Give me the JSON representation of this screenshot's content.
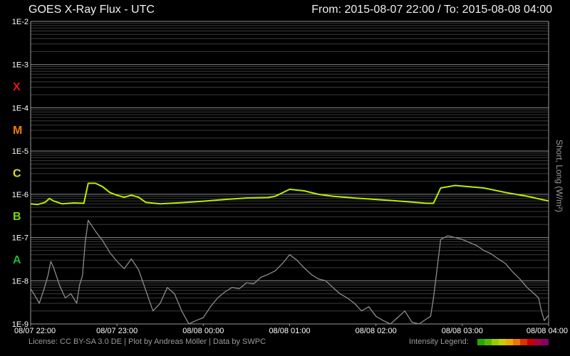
{
  "header": {
    "title": "GOES X-Ray Flux - UTC",
    "range": "From: 2015-08-07 22:00  /  To: 2015-08-08 04:00"
  },
  "footer": {
    "credits": "License: CC BY-SA 3.0 DE | Plot by Andreas Möller | Data by SWPC",
    "legend_label": "Intensity Legend:",
    "legend_colors": [
      "#22aa00",
      "#55bb00",
      "#99cc00",
      "#cccc00",
      "#eeaa00",
      "#ee7700",
      "#dd3300",
      "#cc0000",
      "#aa0044",
      "#880066"
    ]
  },
  "chart_data": {
    "type": "line",
    "title": "GOES X-Ray Flux - UTC",
    "ylabel": "Short, Long (W/m²)",
    "yscale": "log",
    "ylim": [
      1e-09,
      0.01
    ],
    "xlim": [
      "2015-08-07 22:00",
      "2015-08-08 04:00"
    ],
    "y_ticks": [
      "1E-9",
      "1E-8",
      "1E-7",
      "1E-6",
      "1E-5",
      "1E-4",
      "1E-3",
      "1E-2"
    ],
    "x_ticks": [
      "08/07 22:00",
      "08/07 23:00",
      "08/08 00:00",
      "08/08 01:00",
      "08/08 02:00",
      "08/08 03:00",
      "08/08 04:00"
    ],
    "flare_classes": [
      {
        "label": "X",
        "color": "#e01818"
      },
      {
        "label": "M",
        "color": "#f07a10"
      },
      {
        "label": "C",
        "color": "#d8e020"
      },
      {
        "label": "B",
        "color": "#7ed320"
      },
      {
        "label": "A",
        "color": "#20b830"
      }
    ],
    "grid": true,
    "series": [
      {
        "name": "Long",
        "color": "#b8f000",
        "x": [
          "2015-08-07 22:00",
          "2015-08-07 22:05",
          "2015-08-07 22:10",
          "2015-08-07 22:13",
          "2015-08-07 22:16",
          "2015-08-07 22:22",
          "2015-08-07 22:30",
          "2015-08-07 22:37",
          "2015-08-07 22:40",
          "2015-08-07 22:45",
          "2015-08-07 22:50",
          "2015-08-07 22:55",
          "2015-08-07 23:00",
          "2015-08-07 23:05",
          "2015-08-07 23:10",
          "2015-08-07 23:15",
          "2015-08-07 23:20",
          "2015-08-07 23:30",
          "2015-08-07 23:45",
          "2015-08-08 00:00",
          "2015-08-08 00:15",
          "2015-08-08 00:30",
          "2015-08-08 00:45",
          "2015-08-08 00:50",
          "2015-08-08 01:00",
          "2015-08-08 01:10",
          "2015-08-08 01:20",
          "2015-08-08 01:30",
          "2015-08-08 01:45",
          "2015-08-08 02:00",
          "2015-08-08 02:15",
          "2015-08-08 02:30",
          "2015-08-08 02:35",
          "2015-08-08 02:40",
          "2015-08-08 02:45",
          "2015-08-08 02:55",
          "2015-08-08 03:05",
          "2015-08-08 03:15",
          "2015-08-08 03:30",
          "2015-08-08 03:45",
          "2015-08-08 04:00"
        ],
        "y": [
          6e-07,
          5.8e-07,
          6.5e-07,
          8e-07,
          7e-07,
          6e-07,
          6.3e-07,
          6.2e-07,
          1.8e-06,
          1.8e-06,
          1.5e-06,
          1.1e-06,
          9.5e-07,
          8.5e-07,
          9.5e-07,
          8.5e-07,
          6.5e-07,
          6e-07,
          6.4e-07,
          6.9e-07,
          7.6e-07,
          8.2e-07,
          8.4e-07,
          9e-07,
          1.3e-06,
          1.2e-06,
          1e-06,
          9e-07,
          8.2e-07,
          7.6e-07,
          7e-07,
          6.4e-07,
          6.2e-07,
          6.2e-07,
          1.4e-06,
          1.6e-06,
          1.5e-06,
          1.4e-06,
          1.1e-06,
          9e-07,
          7e-07
        ]
      },
      {
        "name": "Short",
        "color": "#8c8c8c",
        "x": [
          "2015-08-07 22:00",
          "2015-08-07 22:03",
          "2015-08-07 22:06",
          "2015-08-07 22:09",
          "2015-08-07 22:12",
          "2015-08-07 22:14",
          "2015-08-07 22:16",
          "2015-08-07 22:20",
          "2015-08-07 22:24",
          "2015-08-07 22:28",
          "2015-08-07 22:32",
          "2015-08-07 22:34",
          "2015-08-07 22:36",
          "2015-08-07 22:38",
          "2015-08-07 22:40",
          "2015-08-07 22:45",
          "2015-08-07 22:50",
          "2015-08-07 22:55",
          "2015-08-07 23:00",
          "2015-08-07 23:05",
          "2015-08-07 23:10",
          "2015-08-07 23:15",
          "2015-08-07 23:20",
          "2015-08-07 23:25",
          "2015-08-07 23:30",
          "2015-08-07 23:35",
          "2015-08-07 23:40",
          "2015-08-07 23:45",
          "2015-08-07 23:50",
          "2015-08-07 23:55",
          "2015-08-08 00:00",
          "2015-08-08 00:05",
          "2015-08-08 00:10",
          "2015-08-08 00:15",
          "2015-08-08 00:20",
          "2015-08-08 00:25",
          "2015-08-08 00:30",
          "2015-08-08 00:35",
          "2015-08-08 00:40",
          "2015-08-08 00:45",
          "2015-08-08 00:50",
          "2015-08-08 00:55",
          "2015-08-08 01:00",
          "2015-08-08 01:05",
          "2015-08-08 01:10",
          "2015-08-08 01:15",
          "2015-08-08 01:20",
          "2015-08-08 01:25",
          "2015-08-08 01:30",
          "2015-08-08 01:35",
          "2015-08-08 01:40",
          "2015-08-08 01:45",
          "2015-08-08 01:50",
          "2015-08-08 01:55",
          "2015-08-08 02:00",
          "2015-08-08 02:05",
          "2015-08-08 02:10",
          "2015-08-08 02:15",
          "2015-08-08 02:20",
          "2015-08-08 02:25",
          "2015-08-08 02:30",
          "2015-08-08 02:35",
          "2015-08-08 02:38",
          "2015-08-08 02:40",
          "2015-08-08 02:45",
          "2015-08-08 02:50",
          "2015-08-08 03:00",
          "2015-08-08 03:10",
          "2015-08-08 03:15",
          "2015-08-08 03:20",
          "2015-08-08 03:25",
          "2015-08-08 03:30",
          "2015-08-08 03:35",
          "2015-08-08 03:40",
          "2015-08-08 03:45",
          "2015-08-08 03:50",
          "2015-08-08 03:53",
          "2015-08-08 03:55",
          "2015-08-08 03:57",
          "2015-08-08 04:00"
        ],
        "y": [
          6.5e-09,
          4.5e-09,
          3e-09,
          6e-09,
          1.3e-08,
          2.8e-08,
          2e-08,
          8e-09,
          4e-09,
          5e-09,
          3e-09,
          8e-09,
          1.3e-08,
          8e-08,
          2.5e-07,
          1.4e-07,
          8.5e-08,
          4.5e-08,
          2.8e-08,
          1.9e-08,
          3.2e-08,
          1.8e-08,
          6e-09,
          2e-09,
          3e-09,
          7e-09,
          5e-09,
          2e-09,
          1e-09,
          1.2e-09,
          1.4e-09,
          2.5e-09,
          4e-09,
          5.5e-09,
          7e-09,
          6.5e-09,
          9e-09,
          8.5e-09,
          1.2e-08,
          1.4e-08,
          1.7e-08,
          2.5e-08,
          4e-08,
          3e-08,
          2e-08,
          1.4e-08,
          1.1e-08,
          1e-08,
          7e-09,
          5e-09,
          4e-09,
          3e-09,
          2e-09,
          2.5e-09,
          1.5e-09,
          1.2e-09,
          1e-09,
          1.4e-09,
          2e-09,
          1.1e-09,
          1e-09,
          1.3e-09,
          1.5e-09,
          4e-09,
          9e-08,
          1.1e-07,
          9e-08,
          6.5e-08,
          5e-08,
          4.2e-08,
          3.2e-08,
          2.5e-08,
          1.6e-08,
          1.1e-08,
          7e-09,
          5e-09,
          4e-09,
          2e-09,
          1.2e-09,
          1.6e-09
        ]
      }
    ]
  }
}
